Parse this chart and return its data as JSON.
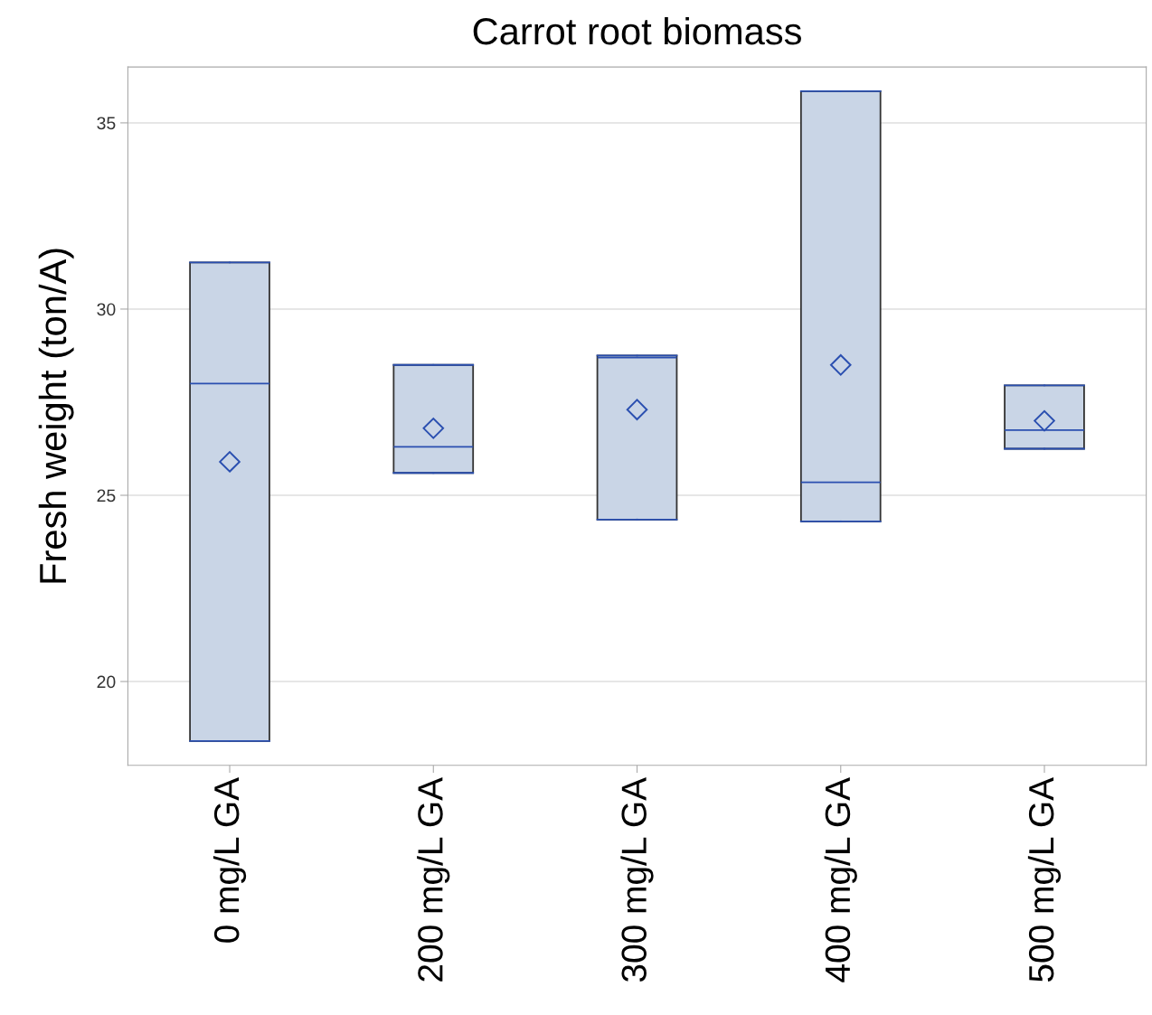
{
  "chart_data": {
    "type": "box",
    "title": "Carrot root biomass",
    "ylabel": "Fresh weight (ton/A)",
    "categories": [
      "0 mg/L GA",
      "200 mg/L GA",
      "300 mg/L GA",
      "400 mg/L GA",
      "500 mg/L GA"
    ],
    "boxes": [
      {
        "low": 18.4,
        "q1": 18.4,
        "median": 28.0,
        "q3": 31.25,
        "high": 31.25,
        "mean": 25.9
      },
      {
        "low": 25.6,
        "q1": 25.6,
        "median": 26.3,
        "q3": 28.5,
        "high": 28.5,
        "mean": 26.8
      },
      {
        "low": 24.35,
        "q1": 24.35,
        "median": 28.7,
        "q3": 28.75,
        "high": 28.75,
        "mean": 27.3
      },
      {
        "low": 24.3,
        "q1": 24.3,
        "median": 25.35,
        "q3": 35.85,
        "high": 35.85,
        "mean": 28.5
      },
      {
        "low": 26.25,
        "q1": 26.25,
        "median": 26.75,
        "q3": 27.95,
        "high": 27.95,
        "mean": 27.0
      }
    ],
    "color": "#c9d5e6",
    "ylim": [
      17.75,
      36.5
    ],
    "yticks": [
      20,
      25,
      30,
      35
    ],
    "grid": "y",
    "marker": "diamond"
  }
}
